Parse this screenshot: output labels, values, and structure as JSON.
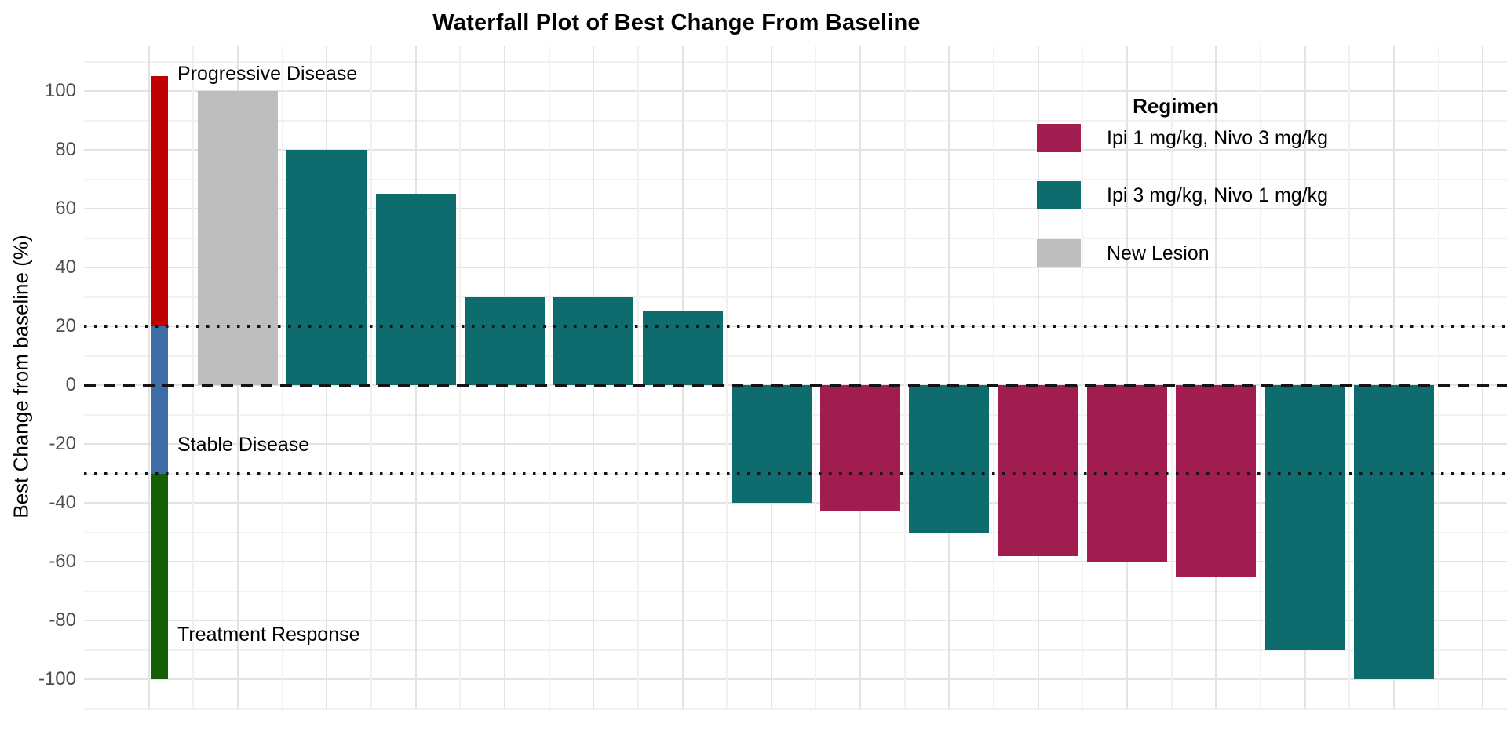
{
  "title": "Waterfall Plot of Best Change From Baseline",
  "y_axis": {
    "label": "Best Change from baseline (%)",
    "tick_labels": [
      "100",
      "80",
      "60",
      "40",
      "20",
      "0",
      "-20",
      "-40",
      "-60",
      "-80",
      "-100"
    ]
  },
  "response_labels": {
    "progressive": "Progressive Disease",
    "stable": "Stable Disease",
    "response": "Treatment Response"
  },
  "legend": {
    "title": "Regimen",
    "items": [
      {
        "label": "Ipi 1 mg/kg, Nivo 3 mg/kg",
        "color": "#A21D4F"
      },
      {
        "label": "Ipi 3 mg/kg, Nivo 1 mg/kg",
        "color": "#0F6C6E"
      },
      {
        "label": "New Lesion",
        "color": "#BEBEBE"
      }
    ]
  },
  "chart_data": {
    "type": "bar",
    "title": "Waterfall Plot of Best Change From Baseline",
    "xlabel": "",
    "ylabel": "Best Change from baseline (%)",
    "ylim": [
      -110,
      115
    ],
    "yticks": [
      100,
      80,
      60,
      40,
      20,
      0,
      -20,
      -40,
      -60,
      -80,
      -100
    ],
    "grid": true,
    "legend_position": "inside-top-right",
    "bars": [
      {
        "patient": 1,
        "value": 100,
        "group": "New Lesion"
      },
      {
        "patient": 2,
        "value": 80,
        "group": "Ipi 3 mg/kg, Nivo 1 mg/kg"
      },
      {
        "patient": 3,
        "value": 65,
        "group": "Ipi 3 mg/kg, Nivo 1 mg/kg"
      },
      {
        "patient": 4,
        "value": 30,
        "group": "Ipi 3 mg/kg, Nivo 1 mg/kg"
      },
      {
        "patient": 5,
        "value": 30,
        "group": "Ipi 3 mg/kg, Nivo 1 mg/kg"
      },
      {
        "patient": 6,
        "value": 25,
        "group": "Ipi 3 mg/kg, Nivo 1 mg/kg"
      },
      {
        "patient": 7,
        "value": -40,
        "group": "Ipi 3 mg/kg, Nivo 1 mg/kg"
      },
      {
        "patient": 8,
        "value": -43,
        "group": "Ipi 1 mg/kg, Nivo 3 mg/kg"
      },
      {
        "patient": 9,
        "value": -50,
        "group": "Ipi 3 mg/kg, Nivo 1 mg/kg"
      },
      {
        "patient": 10,
        "value": -58,
        "group": "Ipi 1 mg/kg, Nivo 3 mg/kg"
      },
      {
        "patient": 11,
        "value": -60,
        "group": "Ipi 1 mg/kg, Nivo 3 mg/kg"
      },
      {
        "patient": 12,
        "value": -65,
        "group": "Ipi 1 mg/kg, Nivo 3 mg/kg"
      },
      {
        "patient": 13,
        "value": -90,
        "group": "Ipi 3 mg/kg, Nivo 1 mg/kg"
      },
      {
        "patient": 14,
        "value": -100,
        "group": "Ipi 3 mg/kg, Nivo 1 mg/kg"
      }
    ],
    "reference_lines": [
      {
        "y": 20,
        "style": "dotted",
        "meaning": "Progressive Disease threshold"
      },
      {
        "y": 0,
        "style": "dashed",
        "meaning": "baseline"
      },
      {
        "y": -30,
        "style": "dotted",
        "meaning": "Treatment Response threshold"
      }
    ],
    "response_bands": [
      {
        "label": "Progressive Disease",
        "from": 20,
        "to": 105,
        "color": "#C00000"
      },
      {
        "label": "Stable Disease",
        "from": -30,
        "to": 20,
        "color": "#3C6DA6"
      },
      {
        "label": "Treatment Response",
        "from": -100,
        "to": -30,
        "color": "#145E06"
      }
    ]
  }
}
